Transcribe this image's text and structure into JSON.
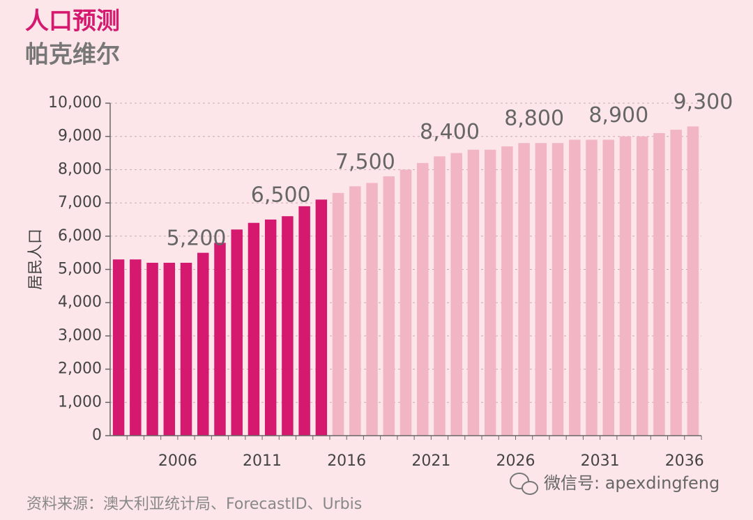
{
  "chart_data": {
    "type": "bar",
    "title": "人口预测",
    "subtitle": "帕克维尔",
    "y_label": "居民人口",
    "source": "资料来源：澳大利亚统计局、ForecastID、Urbis",
    "watermark": "微信号: apexdingfeng",
    "categories": [
      null,
      null,
      null,
      null,
      "2006",
      null,
      null,
      null,
      null,
      "2011",
      null,
      null,
      null,
      null,
      "2016",
      null,
      null,
      null,
      null,
      "2021",
      null,
      null,
      null,
      null,
      "2026",
      null,
      null,
      null,
      null,
      "2031",
      null,
      null,
      null,
      null,
      "2036"
    ],
    "values": [
      5300,
      5300,
      5200,
      5200,
      5200,
      5500,
      5800,
      6200,
      6400,
      6500,
      6600,
      6900,
      7100,
      7300,
      7500,
      7600,
      7800,
      8000,
      8200,
      8400,
      8500,
      8600,
      8600,
      8700,
      8800,
      8800,
      8800,
      8900,
      8900,
      8900,
      9000,
      9000,
      9100,
      9200,
      9300
    ],
    "bar_colors": [
      "#d4196f",
      "#d4196f",
      "#d4196f",
      "#d4196f",
      "#d4196f",
      "#d4196f",
      "#d4196f",
      "#d4196f",
      "#d4196f",
      "#d4196f",
      "#d4196f",
      "#d4196f",
      "#d4196f",
      "#f1b5c3",
      "#f1b5c3",
      "#f1b5c3",
      "#f1b5c3",
      "#f1b5c3",
      "#f1b5c3",
      "#f1b5c3",
      "#f1b5c3",
      "#f1b5c3",
      "#f1b5c3",
      "#f1b5c3",
      "#f1b5c3",
      "#f1b5c3",
      "#f1b5c3",
      "#f1b5c3",
      "#f1b5c3",
      "#f1b5c3",
      "#f1b5c3",
      "#f1b5c3",
      "#f1b5c3",
      "#f1b5c3",
      "#f1b5c3"
    ],
    "annotations": [
      {
        "text": "5,200",
        "value": 5200,
        "at": "2006"
      },
      {
        "text": "6,500",
        "value": 6500,
        "at": "2011"
      },
      {
        "text": "7,500",
        "value": 7500,
        "at": "2016"
      },
      {
        "text": "8,400",
        "value": 8400,
        "at": "2021"
      },
      {
        "text": "8,800",
        "value": 8800,
        "at": "2026"
      },
      {
        "text": "8,900",
        "value": 8900,
        "at": "2031"
      },
      {
        "text": "9,300",
        "value": 9300,
        "at": "2036"
      }
    ],
    "ylim": [
      0,
      10000
    ],
    "yticks": [
      0,
      {
        "value": 1000,
        "label": "1,000"
      },
      {
        "value": 2000,
        "label": "2,000"
      },
      {
        "value": 3000,
        "label": "3,000"
      },
      {
        "value": 4000,
        "label": "4,000"
      },
      {
        "value": 5000,
        "label": "5,000"
      },
      {
        "value": 6000,
        "label": "6,000"
      },
      {
        "value": 7000,
        "label": "7,000"
      },
      {
        "value": 8000,
        "label": "8,000"
      },
      {
        "value": 9000,
        "label": "9,000"
      },
      {
        "value": 10000,
        "label": "10,000"
      }
    ],
    "grid": true
  }
}
